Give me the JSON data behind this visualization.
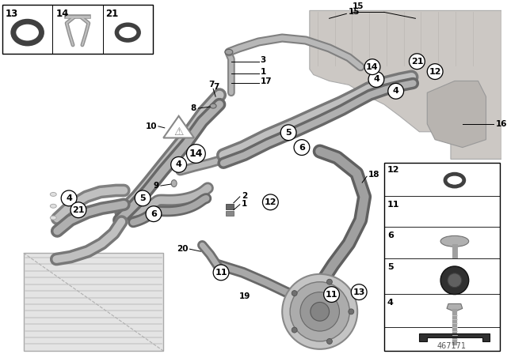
{
  "diagram_number": "467171",
  "bg_color": "#ffffff",
  "box_edge": "#000000",
  "hose_dark": "#808080",
  "hose_light": "#c0c0c0",
  "hose_shadow": "#606060",
  "engine_fill": "#d0ccc8",
  "engine_edge": "#999999",
  "radiator_fill": "#e8e8e8",
  "radiator_edge": "#aaaaaa",
  "comp_fill": "#c8c8c8",
  "comp_dark": "#888888",
  "warn_fill": "#ffffff",
  "warn_edge": "#888888",
  "text_color": "#000000",
  "label_fs": 7.5,
  "circle_r": 8
}
